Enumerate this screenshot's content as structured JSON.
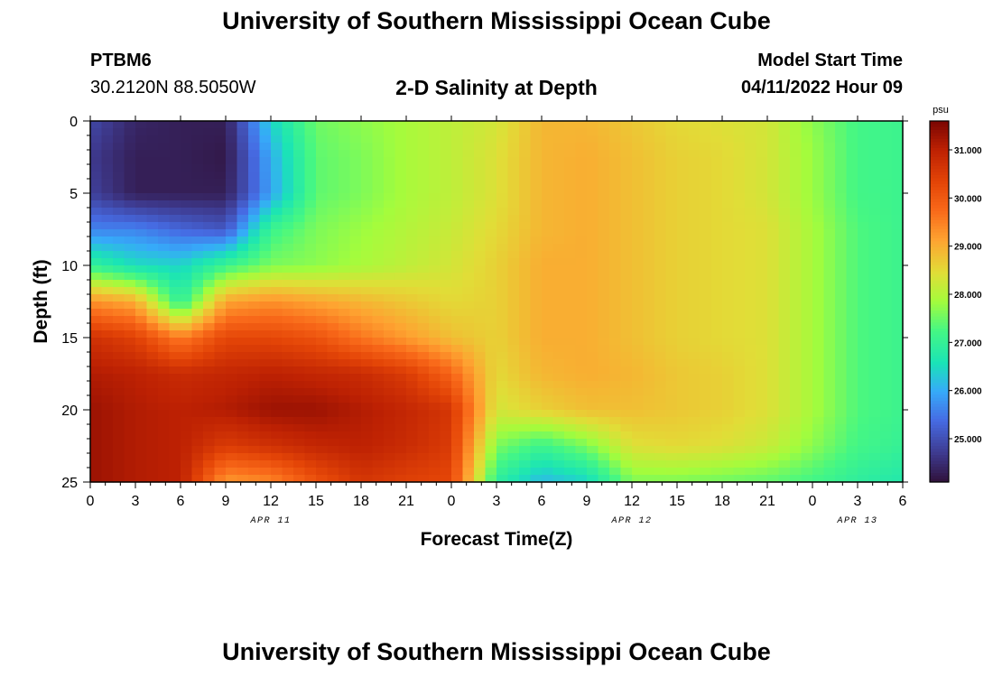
{
  "header": {
    "title": "University of Southern Mississippi Ocean Cube",
    "station": "PTBM6",
    "coords": "30.2120N  88.5050W",
    "subtitle": "2-D Salinity at Depth",
    "model_start_label": "Model Start Time",
    "model_start_value": "04/11/2022 Hour 09"
  },
  "footer": {
    "title": "University of Southern Mississippi Ocean Cube"
  },
  "chart_data": {
    "type": "heatmap",
    "title": "2-D Salinity at Depth",
    "xlabel": "Forecast Time(Z)",
    "ylabel": "Depth (ft)",
    "x_range_hours": [
      0,
      54
    ],
    "x_tick_labels": [
      "0",
      "3",
      "6",
      "9",
      "12",
      "15",
      "18",
      "21",
      "0",
      "3",
      "6",
      "9",
      "12",
      "15",
      "18",
      "21",
      "0",
      "3",
      "6"
    ],
    "date_labels": [
      {
        "label": "APR 11",
        "hour": 12
      },
      {
        "label": "APR 12",
        "hour": 36
      },
      {
        "label": "APR 13",
        "hour": 51
      }
    ],
    "y_range": [
      0,
      25
    ],
    "y_ticks": [
      0,
      5,
      10,
      15,
      20,
      25
    ],
    "colorbar": {
      "unit": "psu",
      "min": 24.1,
      "max": 31.6,
      "tick_values": [
        25.0,
        26.0,
        27.0,
        28.0,
        29.0,
        30.0,
        31.0
      ],
      "tick_labels": [
        "25.000",
        "26.000",
        "27.000",
        "28.000",
        "29.000",
        "30.000",
        "31.000"
      ],
      "colormap": "turbo"
    },
    "salinity_by_hour": {
      "hours": [
        0,
        3,
        6,
        9,
        12,
        15,
        18,
        21,
        24,
        27,
        30,
        33,
        36,
        39,
        42,
        45,
        48,
        51,
        54
      ],
      "depths_ft": [
        0,
        2.5,
        5,
        7.5,
        10,
        12.5,
        15,
        17.5,
        20,
        22.5,
        25
      ],
      "values": [
        [
          24.9,
          24.4,
          24.3,
          24.3,
          26.4,
          27.5,
          27.7,
          27.9,
          28.1,
          28.3,
          28.9,
          28.9,
          28.7,
          28.5,
          28.4,
          28.3,
          27.7,
          27.2,
          27.1
        ],
        [
          24.7,
          24.3,
          24.3,
          24.2,
          26.0,
          27.4,
          27.6,
          27.9,
          28.1,
          28.4,
          28.9,
          29.0,
          28.8,
          28.6,
          28.5,
          28.3,
          27.8,
          27.2,
          27.1
        ],
        [
          24.8,
          24.3,
          24.3,
          24.3,
          25.9,
          27.4,
          27.6,
          27.9,
          28.1,
          28.4,
          28.9,
          29.0,
          28.8,
          28.6,
          28.5,
          28.3,
          27.8,
          27.2,
          27.1
        ],
        [
          25.6,
          25.6,
          25.3,
          25.1,
          27.1,
          27.6,
          27.8,
          28.0,
          28.2,
          28.5,
          28.9,
          29.0,
          28.8,
          28.6,
          28.5,
          28.4,
          27.9,
          27.3,
          27.1
        ],
        [
          27.0,
          26.5,
          26.4,
          27.1,
          27.6,
          27.7,
          27.9,
          28.1,
          28.3,
          28.6,
          29.0,
          29.0,
          28.8,
          28.6,
          28.5,
          28.4,
          27.9,
          27.3,
          27.1
        ],
        [
          29.3,
          29.0,
          26.9,
          29.1,
          29.3,
          29.1,
          28.9,
          28.7,
          28.5,
          28.6,
          29.0,
          29.0,
          28.8,
          28.6,
          28.5,
          28.4,
          27.9,
          27.3,
          27.1
        ],
        [
          30.7,
          30.4,
          29.5,
          30.3,
          30.3,
          30.1,
          29.6,
          29.2,
          28.8,
          28.6,
          29.0,
          29.0,
          28.8,
          28.6,
          28.5,
          28.4,
          27.9,
          27.3,
          27.1
        ],
        [
          31.1,
          31.0,
          30.8,
          30.9,
          31.0,
          30.9,
          30.8,
          30.5,
          29.8,
          28.5,
          28.9,
          29.0,
          28.9,
          28.7,
          28.6,
          28.4,
          27.9,
          27.3,
          27.1
        ],
        [
          31.3,
          31.1,
          31.0,
          31.1,
          31.3,
          31.3,
          31.1,
          30.9,
          30.6,
          28.3,
          28.6,
          28.8,
          28.8,
          28.7,
          28.6,
          28.4,
          27.9,
          27.3,
          27.1
        ],
        [
          31.3,
          31.1,
          31.0,
          30.5,
          30.7,
          30.9,
          31.0,
          30.8,
          30.5,
          27.6,
          27.1,
          27.6,
          28.4,
          28.5,
          28.4,
          28.2,
          27.7,
          27.2,
          27.0
        ],
        [
          31.3,
          31.1,
          31.0,
          29.2,
          29.4,
          30.1,
          30.6,
          30.4,
          30.3,
          26.9,
          26.1,
          26.4,
          27.6,
          27.6,
          27.5,
          27.4,
          27.2,
          26.9,
          26.7
        ]
      ]
    }
  },
  "colors": {
    "background": "#ffffff",
    "axis": "#000000"
  }
}
